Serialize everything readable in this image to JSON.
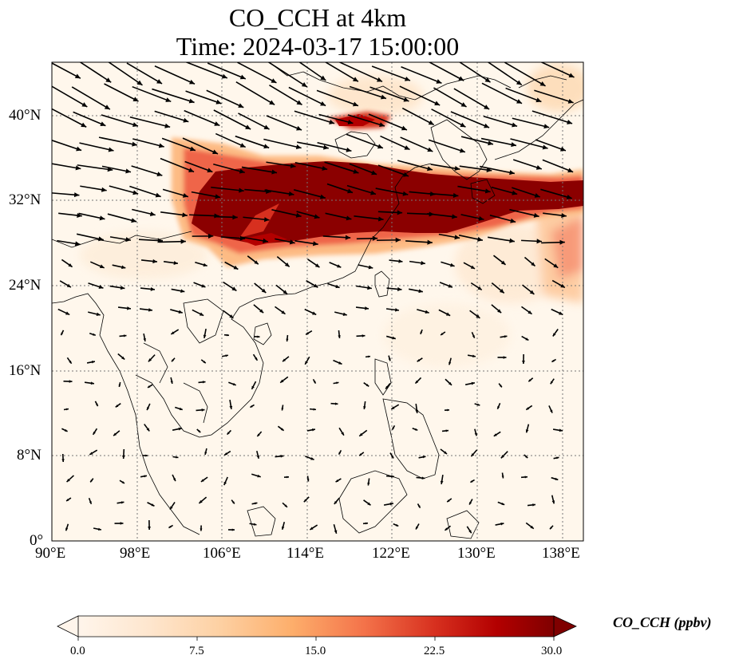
{
  "title_line1": "CO_CCH at 4km",
  "title_line2": "Time: 2024-03-17 15:00:00",
  "map": {
    "lon_range": [
      90,
      140
    ],
    "lat_range": [
      0,
      45
    ],
    "lon_ticks": [
      "90°E",
      "98°E",
      "106°E",
      "114°E",
      "122°E",
      "130°E",
      "138°E"
    ],
    "lat_ticks": [
      "0°",
      "8°N",
      "16°N",
      "24°N",
      "32°N",
      "40°N"
    ],
    "gridlines": "dotted"
  },
  "colorbar": {
    "title": "CO_CCH (ppbv)",
    "ticks": [
      "0.0",
      "7.5",
      "15.0",
      "22.5",
      "30.0"
    ],
    "range": [
      0,
      30
    ],
    "extend": "both",
    "colormap": [
      "#fff5eb",
      "#fee6ce",
      "#fdd0a2",
      "#fdae6b",
      "#fd8d3c",
      "#f16913",
      "#d94801",
      "#a63603",
      "#7f2704"
    ]
  },
  "colors": {
    "plume_max": "#7f0000",
    "plume_high": "#b30000",
    "plume_mid": "#ef6548",
    "plume_low": "#fdbb84",
    "background": "#fff7ec",
    "coastline": "#000000"
  }
}
